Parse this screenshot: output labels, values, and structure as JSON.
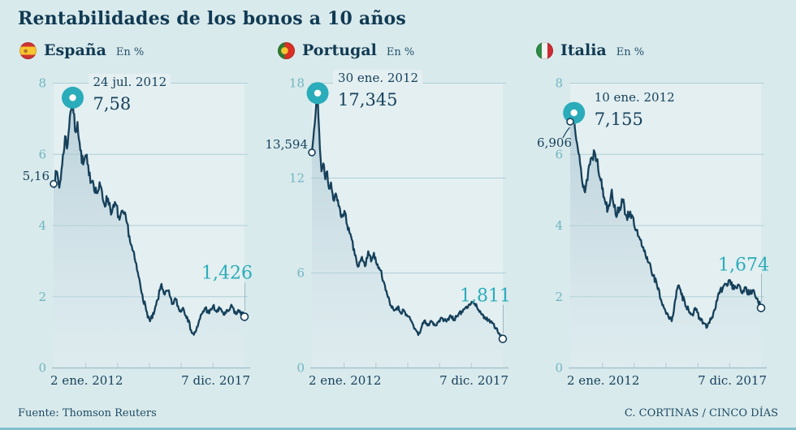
{
  "page": {
    "title": "Rentabilidades de los bonos a 10 años",
    "source": "Fuente: Thomson Reuters",
    "credit": "C. CORTINAS / CINCO DÍAS"
  },
  "colors": {
    "background": "#d9eaec",
    "plot_bg": "#e3eff1",
    "navy_text": "#16415c",
    "line": "#16405a",
    "teal_accent": "#2aacba",
    "y_label": "#6fb6c0",
    "grid": "#b0cfd6",
    "axis": "#a4c1ca",
    "area_top": "rgba(154,185,200,0.55)",
    "area_bottom": "rgba(210,228,234,0.30)",
    "connector": "#9cb8c2",
    "bottom_bar": "#82bfcc"
  },
  "chart_data": [
    {
      "type": "line",
      "country": "España",
      "unit_label": "En %",
      "flag": "spain",
      "ylabel": "En %",
      "ylim": [
        0,
        8
      ],
      "yticks": [
        8,
        6,
        4,
        2,
        0
      ],
      "xticks": [
        "2 ene. 2012",
        "7 dic. 2017"
      ],
      "grid": true,
      "peak": {
        "date_label": "24 jul. 2012",
        "value_label": "7,58",
        "value": 7.58,
        "x_frac": 0.1
      },
      "start": {
        "label": "5,16",
        "value": 5.16,
        "label_below": false
      },
      "end": {
        "label": "1,426",
        "value": 1.426
      },
      "noise": 0.26,
      "seed": 7,
      "anchors": [
        [
          0,
          5.16
        ],
        [
          0.018,
          5.5
        ],
        [
          0.03,
          5.05
        ],
        [
          0.045,
          5.7
        ],
        [
          0.06,
          6.5
        ],
        [
          0.07,
          6.15
        ],
        [
          0.085,
          7.05
        ],
        [
          0.1,
          7.58
        ],
        [
          0.112,
          6.65
        ],
        [
          0.125,
          6.9
        ],
        [
          0.14,
          6.1
        ],
        [
          0.155,
          5.7
        ],
        [
          0.17,
          5.95
        ],
        [
          0.185,
          5.4
        ],
        [
          0.205,
          5.25
        ],
        [
          0.225,
          4.9
        ],
        [
          0.245,
          5.1
        ],
        [
          0.265,
          4.6
        ],
        [
          0.285,
          4.75
        ],
        [
          0.305,
          4.35
        ],
        [
          0.325,
          4.6
        ],
        [
          0.345,
          4.15
        ],
        [
          0.365,
          4.35
        ],
        [
          0.385,
          4.05
        ],
        [
          0.405,
          3.45
        ],
        [
          0.425,
          3.05
        ],
        [
          0.445,
          2.55
        ],
        [
          0.465,
          2.05
        ],
        [
          0.485,
          1.6
        ],
        [
          0.505,
          1.3
        ],
        [
          0.525,
          1.5
        ],
        [
          0.545,
          1.9
        ],
        [
          0.565,
          2.35
        ],
        [
          0.582,
          2.05
        ],
        [
          0.6,
          2.15
        ],
        [
          0.62,
          1.78
        ],
        [
          0.64,
          1.92
        ],
        [
          0.66,
          1.58
        ],
        [
          0.678,
          1.68
        ],
        [
          0.7,
          1.42
        ],
        [
          0.72,
          1.05
        ],
        [
          0.735,
          0.92
        ],
        [
          0.755,
          1.15
        ],
        [
          0.775,
          1.5
        ],
        [
          0.795,
          1.68
        ],
        [
          0.815,
          1.52
        ],
        [
          0.835,
          1.72
        ],
        [
          0.855,
          1.56
        ],
        [
          0.875,
          1.66
        ],
        [
          0.895,
          1.48
        ],
        [
          0.915,
          1.58
        ],
        [
          0.935,
          1.72
        ],
        [
          0.955,
          1.5
        ],
        [
          0.975,
          1.6
        ],
        [
          1,
          1.426
        ]
      ]
    },
    {
      "type": "line",
      "country": "Portugal",
      "unit_label": "En %",
      "flag": "portugal",
      "ylabel": "En %",
      "ylim": [
        0,
        18
      ],
      "yticks": [
        18,
        12,
        6,
        0
      ],
      "xticks": [
        "2 ene. 2012",
        "7 dic. 2017"
      ],
      "grid": true,
      "peak": {
        "date_label": "30 ene. 2012",
        "value_label": "17,345",
        "value": 17.345,
        "x_frac": 0.03
      },
      "start": {
        "label": "13,594",
        "value": 13.594,
        "label_below": false
      },
      "end": {
        "label": "1,811",
        "value": 1.811
      },
      "noise": 0.45,
      "seed": 11,
      "anchors": [
        [
          0,
          13.594
        ],
        [
          0.015,
          15.4
        ],
        [
          0.03,
          17.345
        ],
        [
          0.042,
          13.8
        ],
        [
          0.05,
          12.4
        ],
        [
          0.06,
          12.9
        ],
        [
          0.07,
          11.9
        ],
        [
          0.08,
          12.4
        ],
        [
          0.09,
          11.3
        ],
        [
          0.1,
          11.7
        ],
        [
          0.112,
          10.6
        ],
        [
          0.125,
          11.0
        ],
        [
          0.14,
          10.2
        ],
        [
          0.155,
          9.5
        ],
        [
          0.17,
          9.9
        ],
        [
          0.185,
          9.0
        ],
        [
          0.205,
          8.3
        ],
        [
          0.225,
          7.1
        ],
        [
          0.245,
          6.4
        ],
        [
          0.262,
          7.0
        ],
        [
          0.278,
          6.4
        ],
        [
          0.295,
          7.35
        ],
        [
          0.31,
          6.7
        ],
        [
          0.325,
          7.25
        ],
        [
          0.34,
          6.5
        ],
        [
          0.36,
          6.15
        ],
        [
          0.375,
          5.45
        ],
        [
          0.39,
          4.85
        ],
        [
          0.41,
          3.95
        ],
        [
          0.43,
          3.6
        ],
        [
          0.45,
          3.85
        ],
        [
          0.465,
          3.45
        ],
        [
          0.48,
          3.65
        ],
        [
          0.5,
          3.25
        ],
        [
          0.52,
          2.95
        ],
        [
          0.54,
          2.45
        ],
        [
          0.557,
          2.05
        ],
        [
          0.572,
          2.45
        ],
        [
          0.588,
          2.95
        ],
        [
          0.605,
          2.65
        ],
        [
          0.625,
          2.95
        ],
        [
          0.645,
          2.65
        ],
        [
          0.665,
          2.95
        ],
        [
          0.685,
          3.1
        ],
        [
          0.705,
          2.9
        ],
        [
          0.725,
          3.3
        ],
        [
          0.745,
          3.05
        ],
        [
          0.765,
          3.25
        ],
        [
          0.785,
          3.55
        ],
        [
          0.805,
          3.8
        ],
        [
          0.825,
          4.0
        ],
        [
          0.845,
          4.15
        ],
        [
          0.865,
          3.8
        ],
        [
          0.885,
          3.45
        ],
        [
          0.905,
          3.2
        ],
        [
          0.925,
          3.0
        ],
        [
          0.945,
          2.8
        ],
        [
          0.965,
          2.5
        ],
        [
          0.982,
          2.15
        ],
        [
          1,
          1.811
        ]
      ]
    },
    {
      "type": "line",
      "country": "Italia",
      "unit_label": "En %",
      "flag": "italy",
      "ylabel": "En %",
      "ylim": [
        0,
        8
      ],
      "yticks": [
        8,
        6,
        4,
        2,
        0
      ],
      "xticks": [
        "2 ene. 2012",
        "7 dic. 2017"
      ],
      "grid": true,
      "peak": {
        "date_label": "10 ene. 2012",
        "value_label": "7,155",
        "value": 7.155,
        "x_frac": 0.02
      },
      "start": {
        "label": "6,906",
        "value": 6.906,
        "label_below": true
      },
      "end": {
        "label": "1,674",
        "value": 1.674
      },
      "noise": 0.26,
      "seed": 13,
      "anchors": [
        [
          0,
          6.906
        ],
        [
          0.02,
          7.155
        ],
        [
          0.04,
          6.15
        ],
        [
          0.06,
          5.35
        ],
        [
          0.078,
          4.92
        ],
        [
          0.095,
          5.55
        ],
        [
          0.112,
          5.9
        ],
        [
          0.128,
          6.05
        ],
        [
          0.143,
          5.85
        ],
        [
          0.16,
          5.25
        ],
        [
          0.178,
          4.78
        ],
        [
          0.198,
          4.45
        ],
        [
          0.218,
          5.0
        ],
        [
          0.238,
          4.3
        ],
        [
          0.258,
          4.5
        ],
        [
          0.275,
          4.65
        ],
        [
          0.295,
          4.25
        ],
        [
          0.315,
          4.38
        ],
        [
          0.335,
          4.0
        ],
        [
          0.355,
          3.7
        ],
        [
          0.375,
          3.42
        ],
        [
          0.395,
          3.15
        ],
        [
          0.415,
          2.95
        ],
        [
          0.435,
          2.6
        ],
        [
          0.455,
          2.3
        ],
        [
          0.475,
          1.92
        ],
        [
          0.495,
          1.65
        ],
        [
          0.515,
          1.42
        ],
        [
          0.532,
          1.3
        ],
        [
          0.55,
          1.9
        ],
        [
          0.565,
          2.3
        ],
        [
          0.582,
          2.05
        ],
        [
          0.6,
          1.85
        ],
        [
          0.62,
          1.62
        ],
        [
          0.64,
          1.5
        ],
        [
          0.658,
          1.62
        ],
        [
          0.678,
          1.4
        ],
        [
          0.698,
          1.26
        ],
        [
          0.718,
          1.14
        ],
        [
          0.738,
          1.35
        ],
        [
          0.758,
          1.62
        ],
        [
          0.778,
          2.1
        ],
        [
          0.798,
          2.2
        ],
        [
          0.818,
          2.35
        ],
        [
          0.838,
          2.45
        ],
        [
          0.858,
          2.2
        ],
        [
          0.878,
          2.32
        ],
        [
          0.898,
          2.1
        ],
        [
          0.918,
          2.26
        ],
        [
          0.938,
          2.05
        ],
        [
          0.958,
          2.18
        ],
        [
          0.978,
          1.95
        ],
        [
          1,
          1.674
        ]
      ]
    }
  ]
}
